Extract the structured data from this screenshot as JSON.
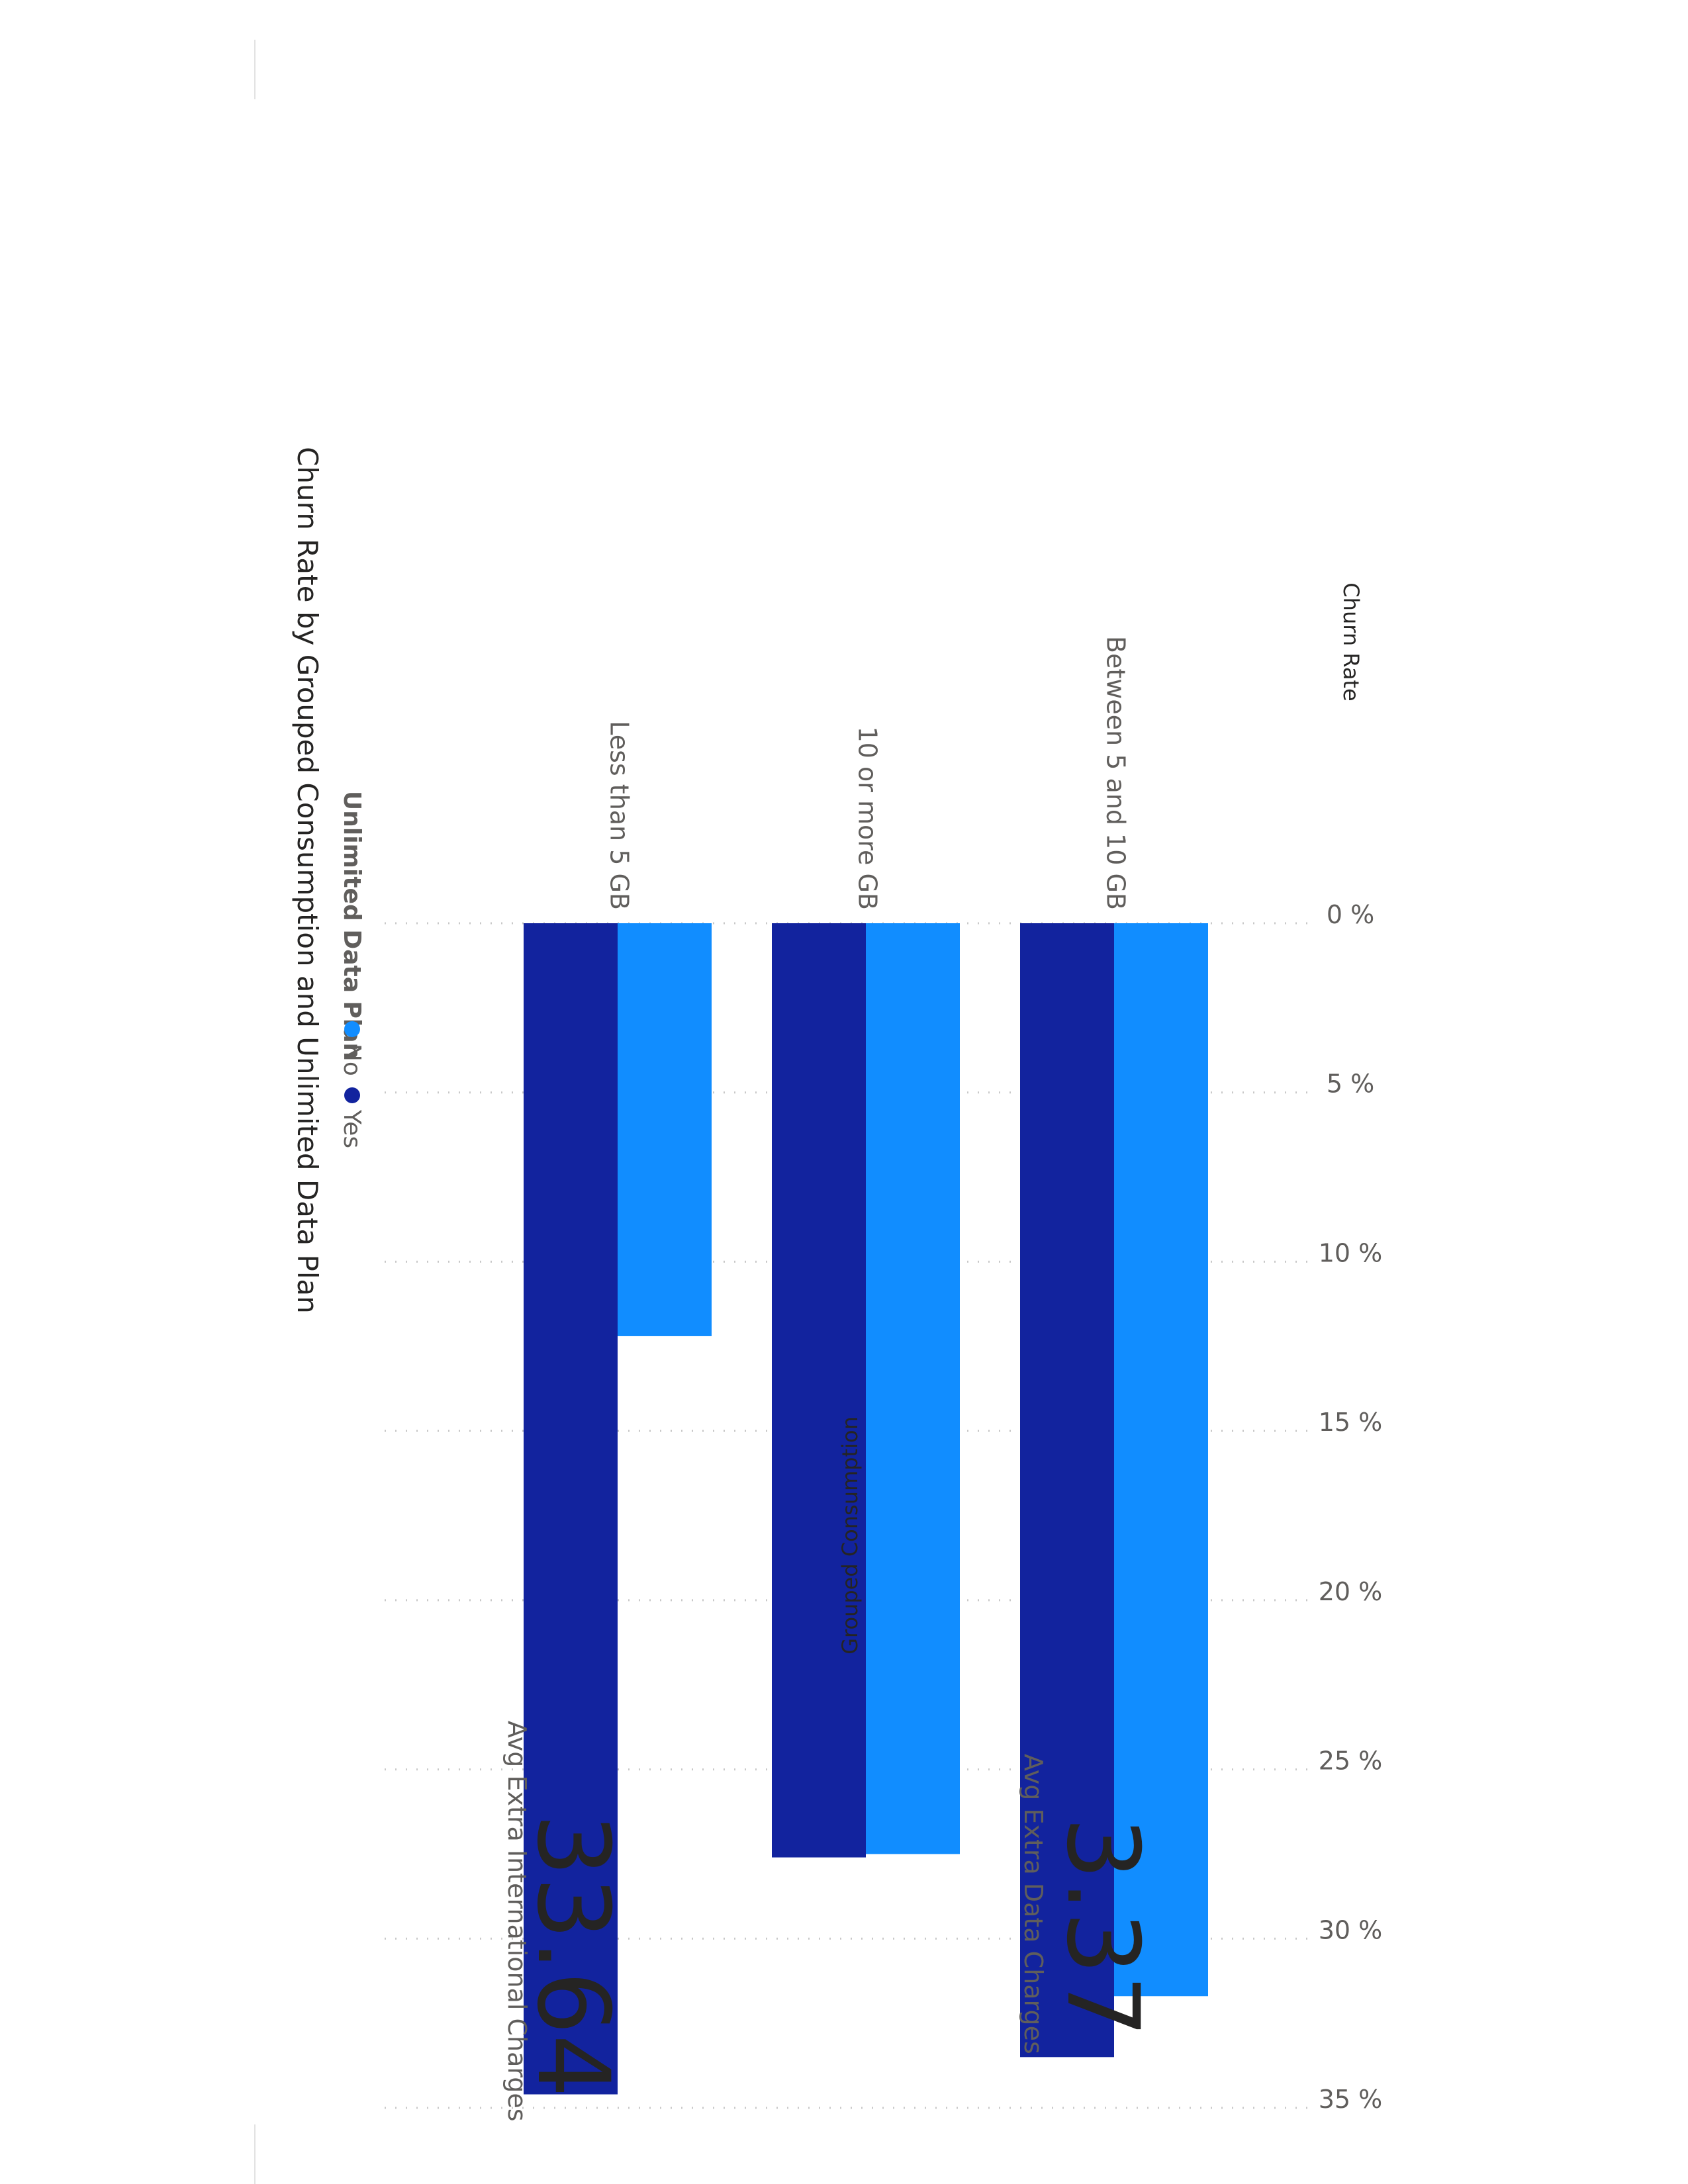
{
  "colors": {
    "series_no": "#118DFF",
    "series_yes": "#12239E",
    "text_dark": "#252423",
    "text_muted": "#605e5c"
  },
  "chart_data": {
    "type": "bar",
    "title": "Churn Rate by Grouped Consumption and Unlimited Data Plan",
    "legend_title": "Unlimited Data Plan",
    "legend_position": "top-left",
    "xlabel": "Grouped Consumption",
    "ylabel": "Churn Rate",
    "categories": [
      "Between 5 and 10 GB",
      "10 or more GB",
      "Less than 5 GB"
    ],
    "series": [
      {
        "name": "No",
        "values": [
          31.7,
          27.5,
          12.2
        ]
      },
      {
        "name": "Yes",
        "values": [
          33.5,
          27.6,
          34.6
        ]
      }
    ],
    "ylim": [
      0,
      35
    ],
    "yticks": [
      0,
      5,
      10,
      15,
      20,
      25,
      30,
      35
    ],
    "ytick_labels": [
      "0 %",
      "5 %",
      "10 %",
      "15 %",
      "20 %",
      "25 %",
      "30 %",
      "35 %"
    ],
    "grid": true
  },
  "kpis": [
    {
      "value": "33.64",
      "label": "Avg Extra International Charges"
    },
    {
      "value": "3.37",
      "label": "Avg Extra Data Charges"
    }
  ]
}
